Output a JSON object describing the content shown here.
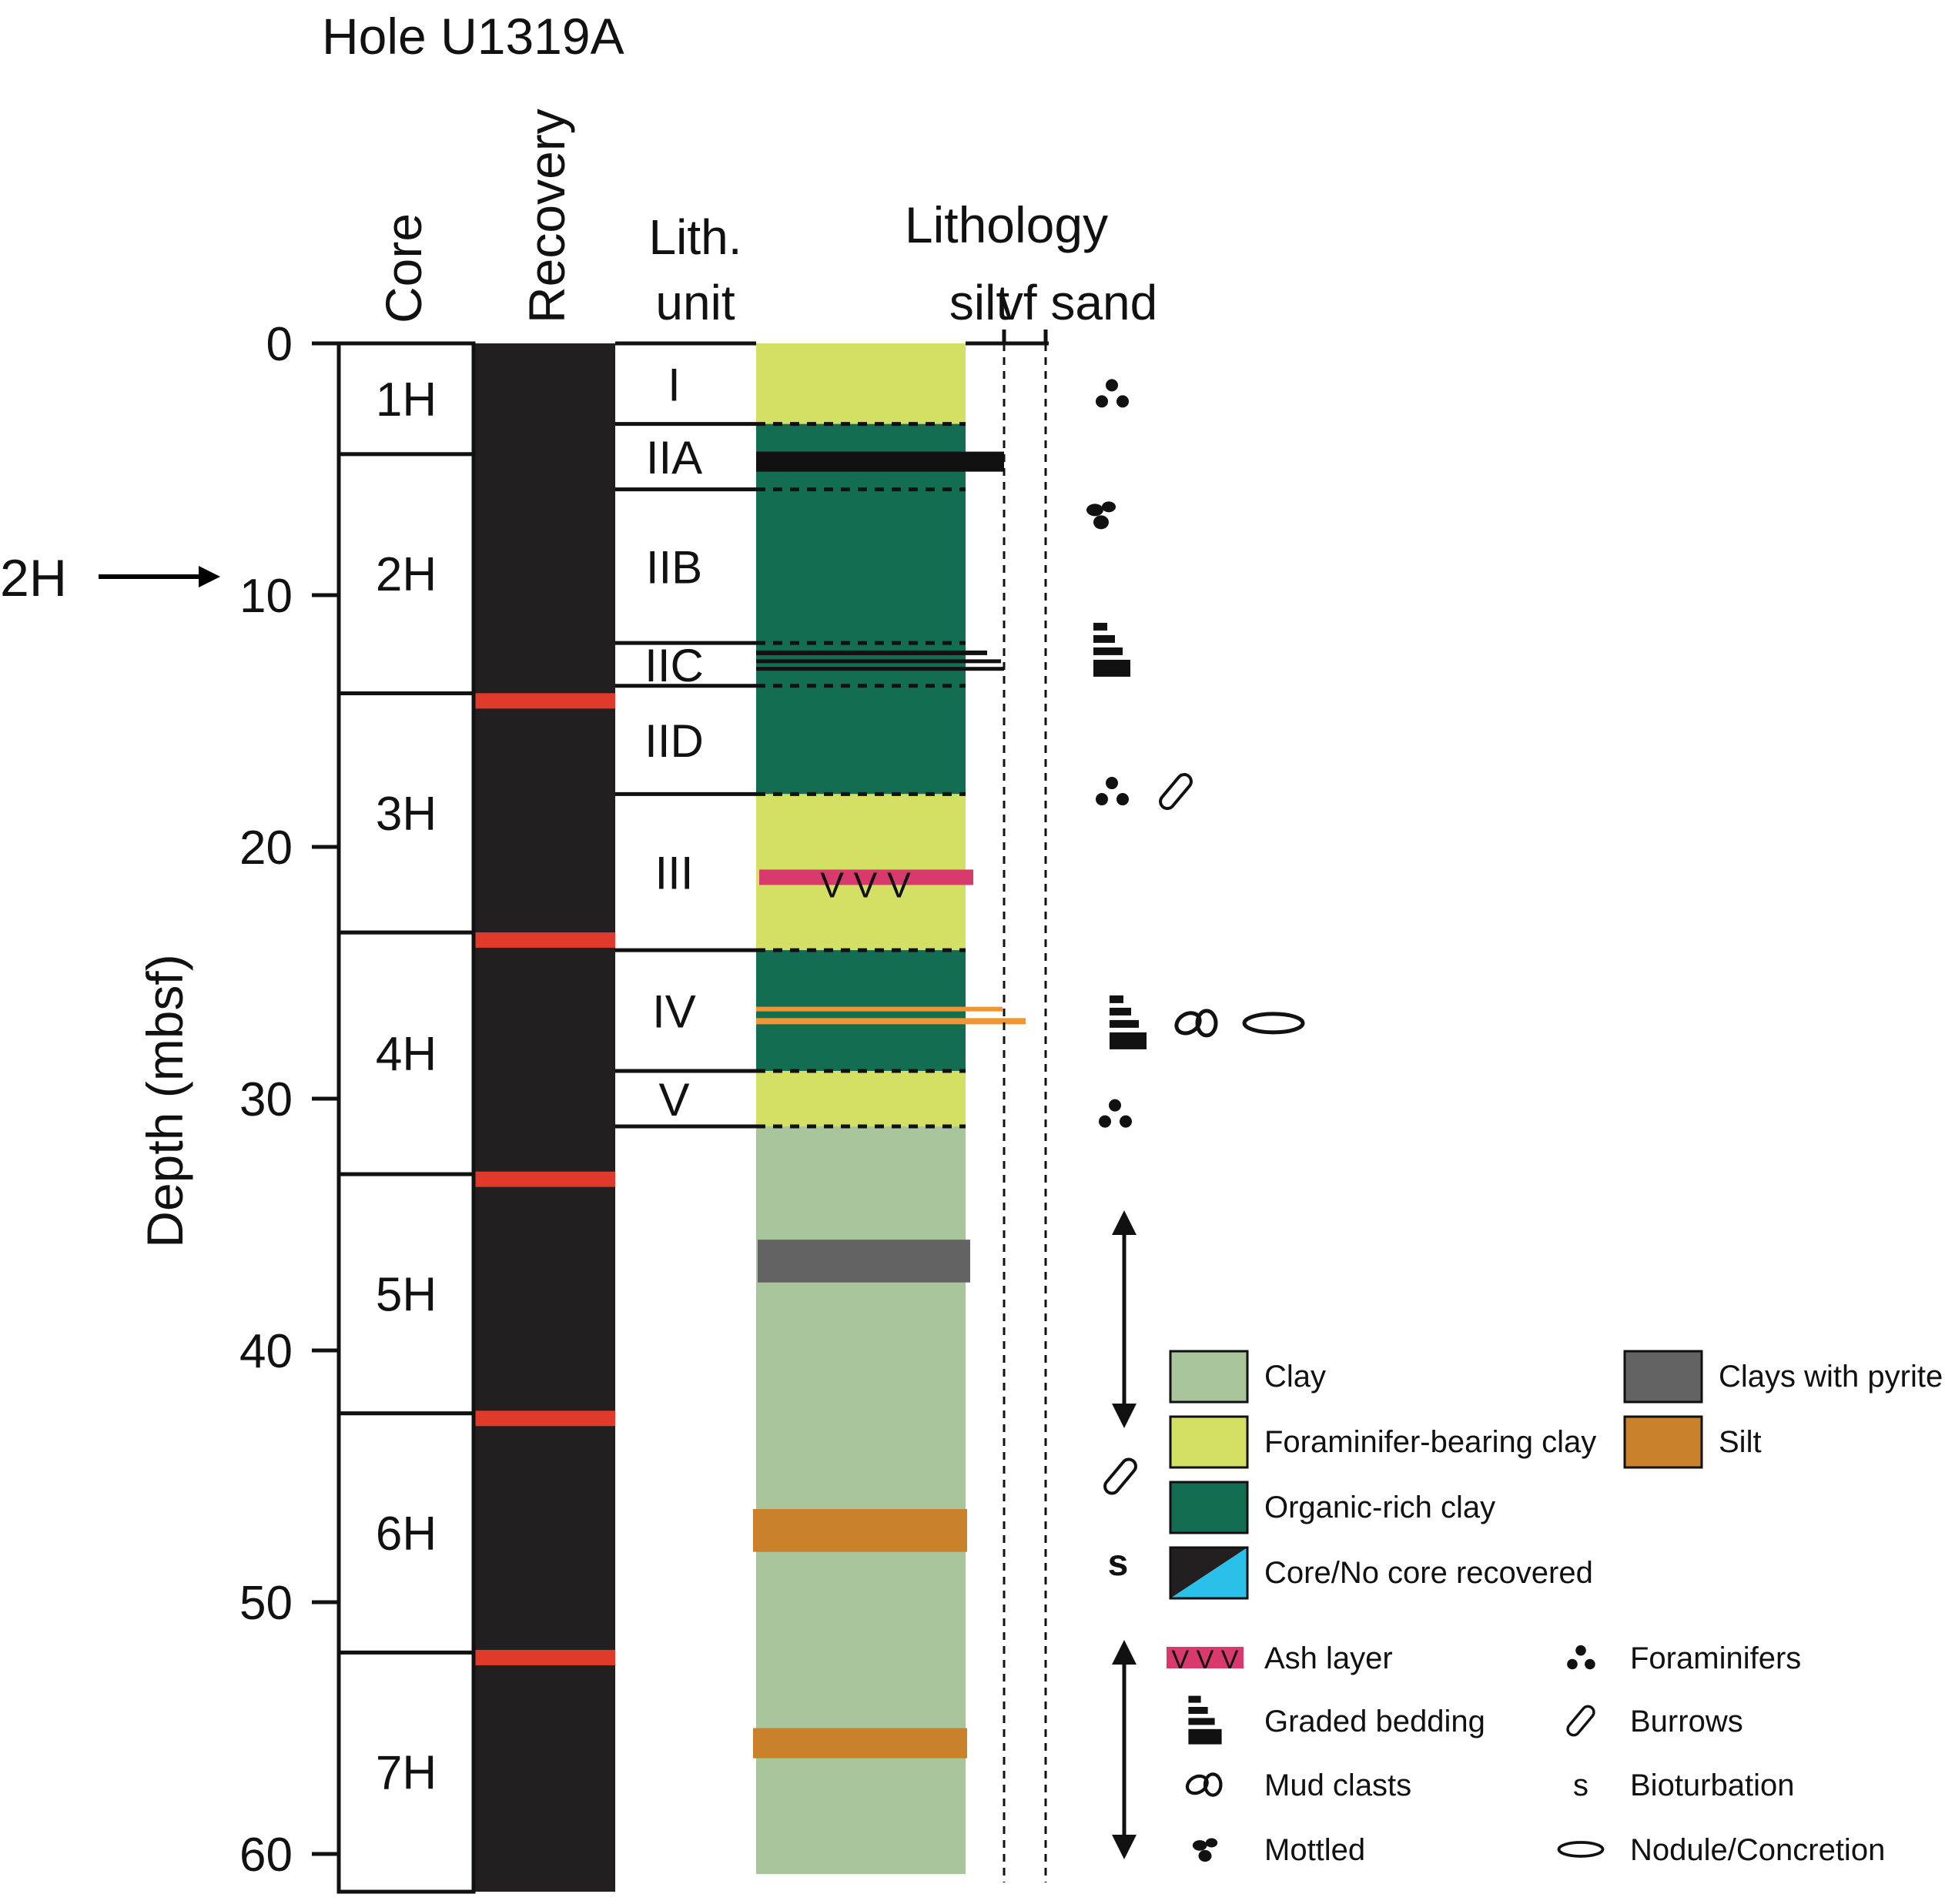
{
  "title": "Hole U1319A",
  "marker": {
    "label": "2H",
    "depth": 9.2
  },
  "headers": {
    "core": "Core",
    "recovery": "Recovery",
    "lith_unit_line1": "Lith.",
    "lith_unit_line2": "unit",
    "lithology": "Lithology",
    "grain_silt": "silt",
    "grain_vfsand": "vf sand"
  },
  "depth_axis": {
    "label": "Depth (mbsf)",
    "min": 0,
    "max": 60,
    "ticks": [
      "0",
      "10",
      "20",
      "30",
      "40",
      "50",
      "60"
    ]
  },
  "cores": [
    {
      "name": "1H",
      "top": 0,
      "bottom": 4.4
    },
    {
      "name": "2H",
      "top": 4.4,
      "bottom": 13.9
    },
    {
      "name": "3H",
      "top": 13.9,
      "bottom": 23.4
    },
    {
      "name": "4H",
      "top": 23.4,
      "bottom": 33.0
    },
    {
      "name": "5H",
      "top": 33.0,
      "bottom": 42.5
    },
    {
      "name": "6H",
      "top": 42.5,
      "bottom": 52.0
    },
    {
      "name": "7H",
      "top": 52.0,
      "bottom": 61.5
    }
  ],
  "recovery_breaks": [
    14.2,
    23.7,
    33.2,
    42.7,
    52.2
  ],
  "units": [
    {
      "name": "I",
      "top": 0,
      "bottom": 3.2
    },
    {
      "name": "IIA",
      "top": 3.2,
      "bottom": 5.8
    },
    {
      "name": "IIB",
      "top": 5.8,
      "bottom": 11.9
    },
    {
      "name": "IIC",
      "top": 11.9,
      "bottom": 13.6
    },
    {
      "name": "IID",
      "top": 13.6,
      "bottom": 17.9
    },
    {
      "name": "III",
      "top": 17.9,
      "bottom": 24.1
    },
    {
      "name": "IV",
      "top": 24.1,
      "bottom": 28.9
    },
    {
      "name": "V",
      "top": 28.9,
      "bottom": 31.1
    }
  ],
  "lithology": [
    {
      "type": "forclay",
      "top": 0,
      "bottom": 3.2
    },
    {
      "type": "organic",
      "top": 3.2,
      "bottom": 17.9
    },
    {
      "type": "forclay",
      "top": 17.9,
      "bottom": 24.1
    },
    {
      "type": "organic",
      "top": 24.1,
      "bottom": 28.9
    },
    {
      "type": "forclay",
      "top": 28.9,
      "bottom": 31.1
    },
    {
      "type": "clay",
      "top": 31.1,
      "bottom": 60.8
    },
    {
      "type": "pyrite",
      "top": 35.6,
      "bottom": 37.3
    },
    {
      "type": "silt",
      "top": 46.3,
      "bottom": 48.0
    },
    {
      "type": "silt",
      "top": 55.0,
      "bottom": 56.2
    }
  ],
  "colors": {
    "clay": "#a8c59b",
    "forclay": "#d4e064",
    "organic": "#136d52",
    "pyrite": "#636363",
    "silt": "#c9812c",
    "core_recovered": "#231f20",
    "no_core": "#29c0ea",
    "core_break": "#e03a2a",
    "ash": "#d93a6e",
    "silt_layer": "#f1962f"
  },
  "ash_symbol": "V V V",
  "structures": [
    {
      "icon": "foraminifers-icon",
      "depth": 2.0
    },
    {
      "icon": "mottled-icon",
      "depth": 6.8
    },
    {
      "icon": "graded-bedding-icon",
      "depth": 12.2
    },
    {
      "icon": "foraminifers-icon",
      "depth": 17.8
    },
    {
      "icon": "burrows-icon",
      "depth": 17.8
    },
    {
      "icon": "graded-bedding-icon",
      "depth": 27.0
    },
    {
      "icon": "mud-clasts-icon",
      "depth": 27.0
    },
    {
      "icon": "nodule-icon",
      "depth": 27.0
    },
    {
      "icon": "foraminifers-icon",
      "depth": 30.6
    },
    {
      "icon": "burrows-icon",
      "depth": 45.0
    }
  ],
  "bioturbation_mark": "s",
  "legend": {
    "fills": [
      {
        "key": "clay",
        "label": "Clay"
      },
      {
        "key": "forclay",
        "label": "Foraminifer-bearing clay"
      },
      {
        "key": "organic",
        "label": "Organic-rich clay"
      },
      {
        "key": "core",
        "label": "Core/No core recovered"
      },
      {
        "key": "pyrite",
        "label": "Clays with pyrite"
      },
      {
        "key": "silt",
        "label": "Silt"
      }
    ],
    "symbols": [
      {
        "icon": "ash-layer-icon",
        "label": "Ash layer"
      },
      {
        "icon": "graded-bedding-icon",
        "label": "Graded bedding"
      },
      {
        "icon": "mud-clasts-icon",
        "label": "Mud clasts"
      },
      {
        "icon": "mottled-icon",
        "label": "Mottled"
      },
      {
        "icon": "foraminifers-icon",
        "label": "Foraminifers"
      },
      {
        "icon": "burrows-icon",
        "label": "Burrows"
      },
      {
        "icon": "bioturbation-icon",
        "label": "Bioturbation"
      },
      {
        "icon": "nodule-icon",
        "label": "Nodule/Concretion"
      }
    ]
  }
}
